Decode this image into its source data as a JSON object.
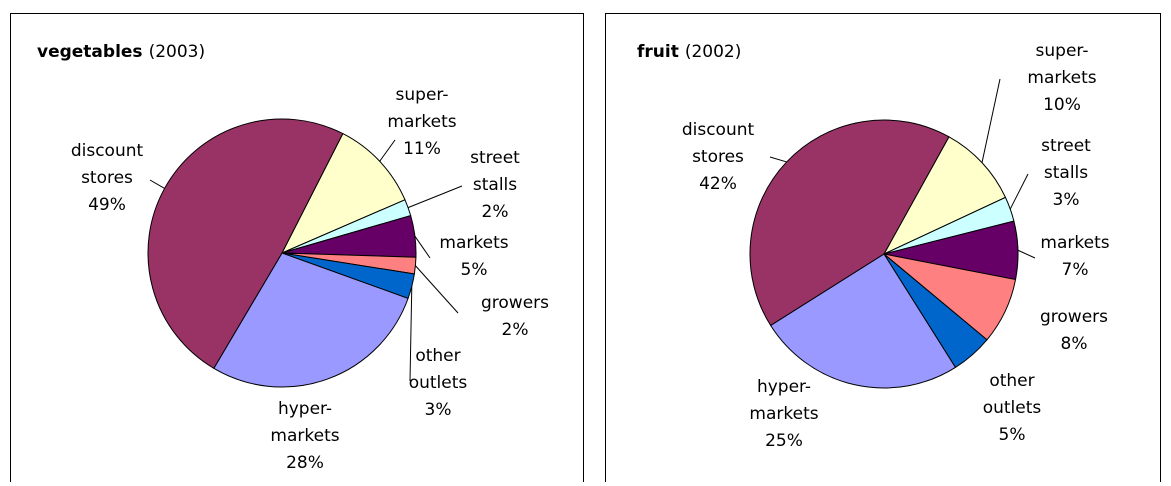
{
  "chart_data": [
    {
      "type": "pie",
      "title": "vegetables",
      "subtitle": "(2003)",
      "categories": [
        "super-markets",
        "street stalls",
        "markets",
        "growers",
        "other outlets",
        "hyper-markets",
        "discount stores"
      ],
      "values": [
        11,
        2,
        5,
        2,
        3,
        28,
        49
      ],
      "value_labels": [
        "11%",
        "2%",
        "5%",
        "2%",
        "3%",
        "28%",
        "49%"
      ],
      "colors": [
        "#ffffcc",
        "#ccffff",
        "#660066",
        "#ff8080",
        "#0066cc",
        "#9999ff",
        "#993366"
      ]
    },
    {
      "type": "pie",
      "title": "fruit",
      "subtitle": "(2002)",
      "categories": [
        "super-markets",
        "street stalls",
        "markets",
        "growers",
        "other outlets",
        "hyper-markets",
        "discount stores"
      ],
      "values": [
        10,
        3,
        7,
        8,
        5,
        25,
        42
      ],
      "value_labels": [
        "10%",
        "3%",
        "7%",
        "8%",
        "5%",
        "25%",
        "42%"
      ],
      "colors": [
        "#ffffcc",
        "#ccffff",
        "#660066",
        "#ff8080",
        "#0066cc",
        "#9999ff",
        "#993366"
      ]
    }
  ]
}
